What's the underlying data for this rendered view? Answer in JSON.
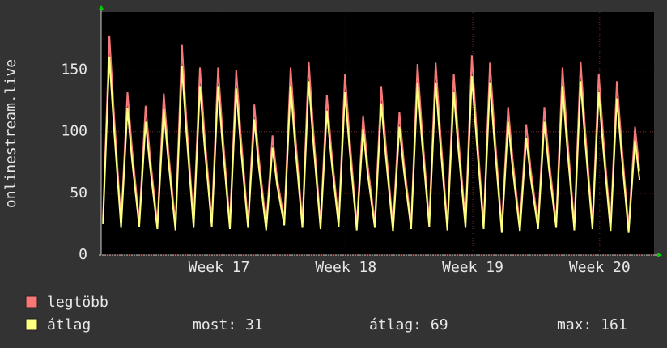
{
  "chart_data": {
    "type": "line",
    "y_label": "onlinestream.live",
    "x": [
      0.1,
      0.45,
      0.7,
      1.1,
      1.45,
      1.7,
      2.1,
      2.45,
      2.7,
      3.1,
      3.45,
      3.7,
      4.1,
      4.45,
      4.7,
      5.1,
      5.45,
      5.7,
      6.1,
      6.45,
      6.7,
      7.1,
      7.45,
      7.7,
      8.1,
      8.45,
      8.7,
      9.1,
      9.45,
      9.7,
      10.1,
      10.45,
      10.7,
      11.1,
      11.45,
      11.7,
      12.1,
      12.45,
      12.7,
      13.1,
      13.45,
      13.7,
      14.1,
      14.45,
      14.7,
      15.1,
      15.45,
      15.7,
      16.1,
      16.45,
      16.7,
      17.1,
      17.45,
      17.7,
      18.1,
      18.45,
      18.7,
      19.1,
      19.45,
      19.7,
      20.1,
      20.45,
      20.7,
      21.1,
      21.45,
      21.7,
      22.1,
      22.45,
      22.7,
      23.1,
      23.45,
      23.7,
      24.1,
      24.45,
      24.7,
      25.1,
      25.45,
      25.7,
      26.1,
      26.45,
      26.7,
      27.1,
      27.45,
      27.7,
      28.1,
      28.45,
      28.7,
      29.1,
      29.45,
      29.7
    ],
    "series": [
      {
        "name": "legtöbb",
        "color": "#f87878",
        "values": [
          28,
          178,
          116,
          26,
          132,
          86,
          27,
          121,
          79,
          25,
          131,
          85,
          24,
          171,
          111,
          26,
          152,
          99,
          27,
          152,
          99,
          25,
          150,
          98,
          26,
          122,
          79,
          24,
          97,
          63,
          28,
          152,
          99,
          26,
          157,
          102,
          25,
          130,
          85,
          27,
          147,
          96,
          24,
          113,
          73,
          26,
          137,
          89,
          23,
          116,
          75,
          25,
          155,
          101,
          27,
          156,
          101,
          24,
          147,
          96,
          26,
          162,
          105,
          25,
          156,
          101,
          22,
          120,
          78,
          23,
          106,
          69,
          25,
          120,
          78,
          26,
          152,
          99,
          24,
          157,
          102,
          25,
          147,
          96,
          23,
          141,
          92,
          22,
          104,
          68
        ]
      },
      {
        "name": "átlag",
        "color": "#ffff80",
        "values": [
          25,
          161,
          104,
          22,
          119,
          77,
          23,
          108,
          71,
          21,
          118,
          77,
          20,
          153,
          100,
          22,
          137,
          89,
          23,
          137,
          89,
          21,
          135,
          88,
          22,
          110,
          71,
          20,
          87,
          57,
          24,
          137,
          89,
          22,
          141,
          92,
          21,
          117,
          77,
          23,
          132,
          86,
          20,
          102,
          66,
          22,
          123,
          80,
          19,
          104,
          68,
          21,
          140,
          91,
          23,
          140,
          91,
          20,
          132,
          86,
          22,
          145,
          95,
          21,
          140,
          91,
          18,
          108,
          70,
          19,
          95,
          62,
          21,
          108,
          70,
          22,
          137,
          89,
          20,
          141,
          92,
          21,
          132,
          86,
          19,
          127,
          83,
          18,
          93,
          61
        ]
      }
    ],
    "stats": [
      "most: 31",
      "átlag: 69",
      "max: 161"
    ],
    "xlim": [
      0,
      30.5
    ],
    "xticks": [
      {
        "value": 6.5,
        "label": "Week 17"
      },
      {
        "value": 13.5,
        "label": "Week 18"
      },
      {
        "value": 20.5,
        "label": "Week 19"
      },
      {
        "value": 27.5,
        "label": "Week 20"
      }
    ],
    "ylim": [
      0,
      197
    ],
    "yticks": [
      0,
      50,
      100,
      150
    ],
    "grid": true
  }
}
